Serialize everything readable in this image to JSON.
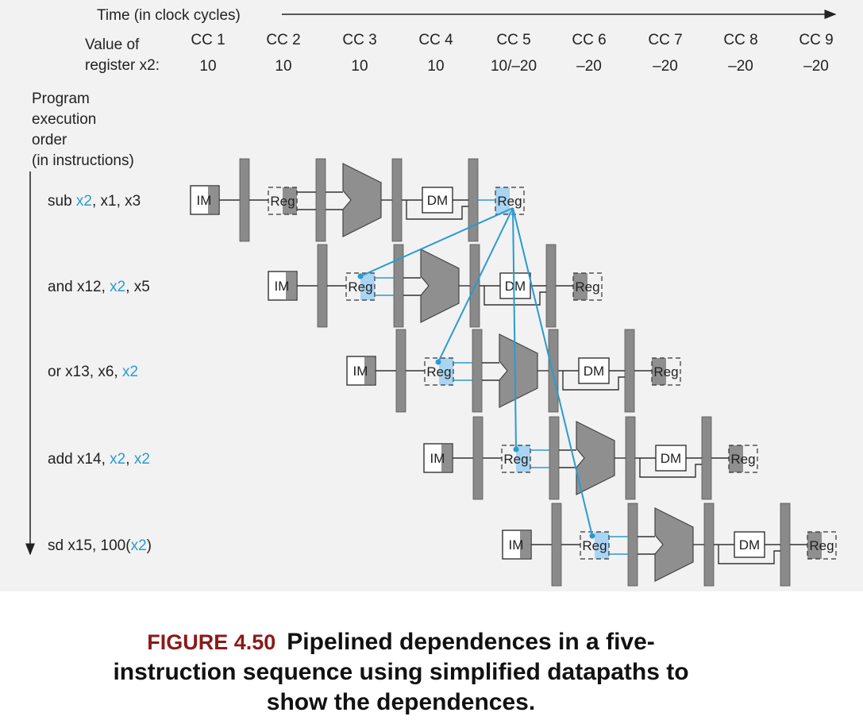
{
  "header": {
    "time_label": "Time (in clock cycles)",
    "value_label_line1": "Value of",
    "value_label_line2": "register x2:"
  },
  "cycles": [
    "CC 1",
    "CC 2",
    "CC 3",
    "CC 4",
    "CC 5",
    "CC 6",
    "CC 7",
    "CC 8",
    "CC 9"
  ],
  "register_values": [
    "10",
    "10",
    "10",
    "10",
    "10/–20",
    "–20",
    "–20",
    "–20",
    "–20"
  ],
  "order_label": [
    "Program",
    "execution",
    "order",
    "(in instructions)"
  ],
  "instructions": [
    {
      "parts": [
        {
          "t": "sub "
        },
        {
          "t": "x2",
          "hl": true
        },
        {
          "t": ", x1, x3"
        }
      ]
    },
    {
      "parts": [
        {
          "t": "and x12, "
        },
        {
          "t": "x2",
          "hl": true
        },
        {
          "t": ", x5"
        }
      ]
    },
    {
      "parts": [
        {
          "t": "or x13, x6, "
        },
        {
          "t": "x2",
          "hl": true
        }
      ]
    },
    {
      "parts": [
        {
          "t": "add x14, "
        },
        {
          "t": "x2",
          "hl": true
        },
        {
          "t": ", "
        },
        {
          "t": "x2",
          "hl": true
        }
      ]
    },
    {
      "parts": [
        {
          "t": "sd x15, 100("
        },
        {
          "t": "x2",
          "hl": true
        },
        {
          "t": ")"
        }
      ]
    }
  ],
  "stages": {
    "im": "IM",
    "reg": "Reg",
    "dm": "DM"
  },
  "colors": {
    "highlight": "#2b9ad1",
    "highlight_fill": "#a9d4f2",
    "unit_gray": "#8f8f8f",
    "panel": "#f2f2f2"
  },
  "caption": {
    "figure_label": "FIGURE 4.50",
    "line1": "Pipelined dependences in a five-",
    "line2": "instruction sequence using simplified datapaths to",
    "line3": "show the dependences."
  }
}
